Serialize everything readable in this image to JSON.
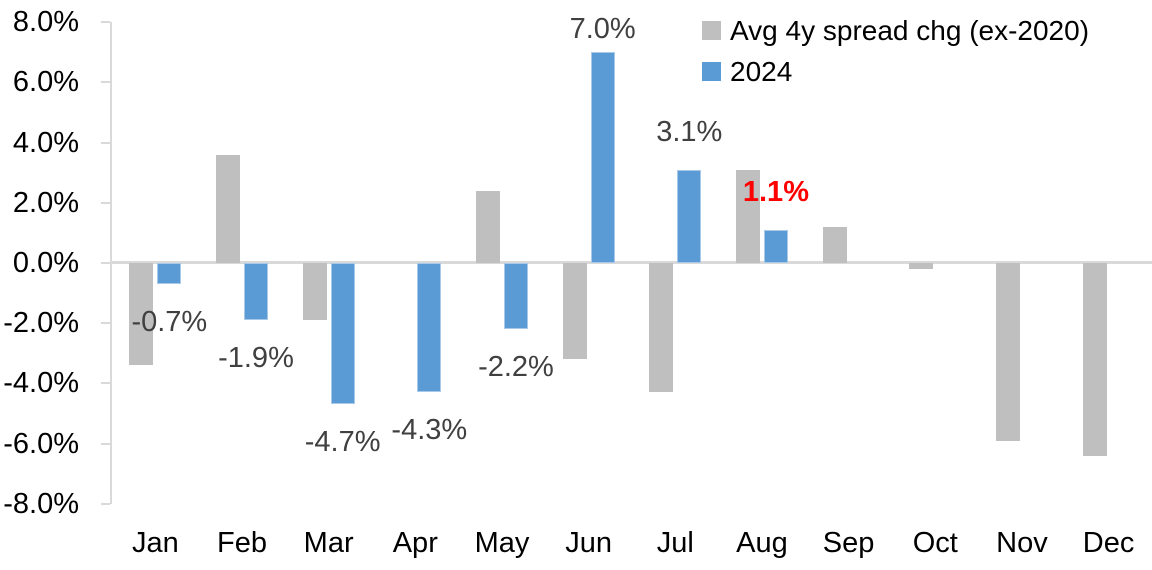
{
  "chart_data": {
    "type": "bar",
    "title": "",
    "categories": [
      "Jan",
      "Feb",
      "Mar",
      "Apr",
      "May",
      "Jun",
      "Jul",
      "Aug",
      "Sep",
      "Oct",
      "Nov",
      "Dec"
    ],
    "series": [
      {
        "name": "Avg 4y spread chg (ex-2020)",
        "color": "#bfbfbf",
        "values": [
          -3.4,
          3.6,
          -1.9,
          0.0,
          2.4,
          -3.2,
          -4.3,
          3.1,
          1.2,
          -0.2,
          -5.9,
          -6.4
        ]
      },
      {
        "name": "2024",
        "color": "#5b9bd5",
        "values": [
          -0.7,
          -1.9,
          -4.7,
          -4.3,
          -2.2,
          7.0,
          3.1,
          1.1,
          null,
          null,
          null,
          null
        ]
      }
    ],
    "data_labels": [
      {
        "text": "-0.7%",
        "color": "#404040",
        "bold": false
      },
      {
        "text": "-1.9%",
        "color": "#404040",
        "bold": false
      },
      {
        "text": "-4.7%",
        "color": "#404040",
        "bold": false
      },
      {
        "text": "-4.3%",
        "color": "#404040",
        "bold": false
      },
      {
        "text": "-2.2%",
        "color": "#404040",
        "bold": false
      },
      {
        "text": "7.0%",
        "color": "#404040",
        "bold": false
      },
      {
        "text": "3.1%",
        "color": "#404040",
        "bold": false
      },
      {
        "text": "1.1%",
        "color": "#ff0000",
        "bold": true
      },
      {
        "text": "",
        "color": "",
        "bold": false
      },
      {
        "text": "",
        "color": "",
        "bold": false
      },
      {
        "text": "",
        "color": "",
        "bold": false
      },
      {
        "text": "",
        "color": "",
        "bold": false
      }
    ],
    "y_ticks": [
      {
        "label": "8.0%",
        "value": 8
      },
      {
        "label": "6.0%",
        "value": 6
      },
      {
        "label": "4.0%",
        "value": 4
      },
      {
        "label": "2.0%",
        "value": 2
      },
      {
        "label": "0.0%",
        "value": 0
      },
      {
        "label": "-2.0%",
        "value": -2
      },
      {
        "label": "-4.0%",
        "value": -4
      },
      {
        "label": "-6.0%",
        "value": -6
      },
      {
        "label": "-8.0%",
        "value": -8
      }
    ],
    "ylim": [
      -8,
      8
    ],
    "y_unit": "%",
    "grid": false,
    "legend_position": "top-right"
  },
  "legend": {
    "items": [
      {
        "label": "Avg 4y spread chg (ex-2020)",
        "color": "#bfbfbf"
      },
      {
        "label": "2024",
        "color": "#5b9bd5"
      }
    ]
  },
  "colors": {
    "gray_series": "#bfbfbf",
    "blue_series": "#5b9bd5",
    "axis": "#d9d9d9",
    "data_label_default": "#404040",
    "data_label_highlight": "#ff0000",
    "axis_text": "#000000"
  }
}
